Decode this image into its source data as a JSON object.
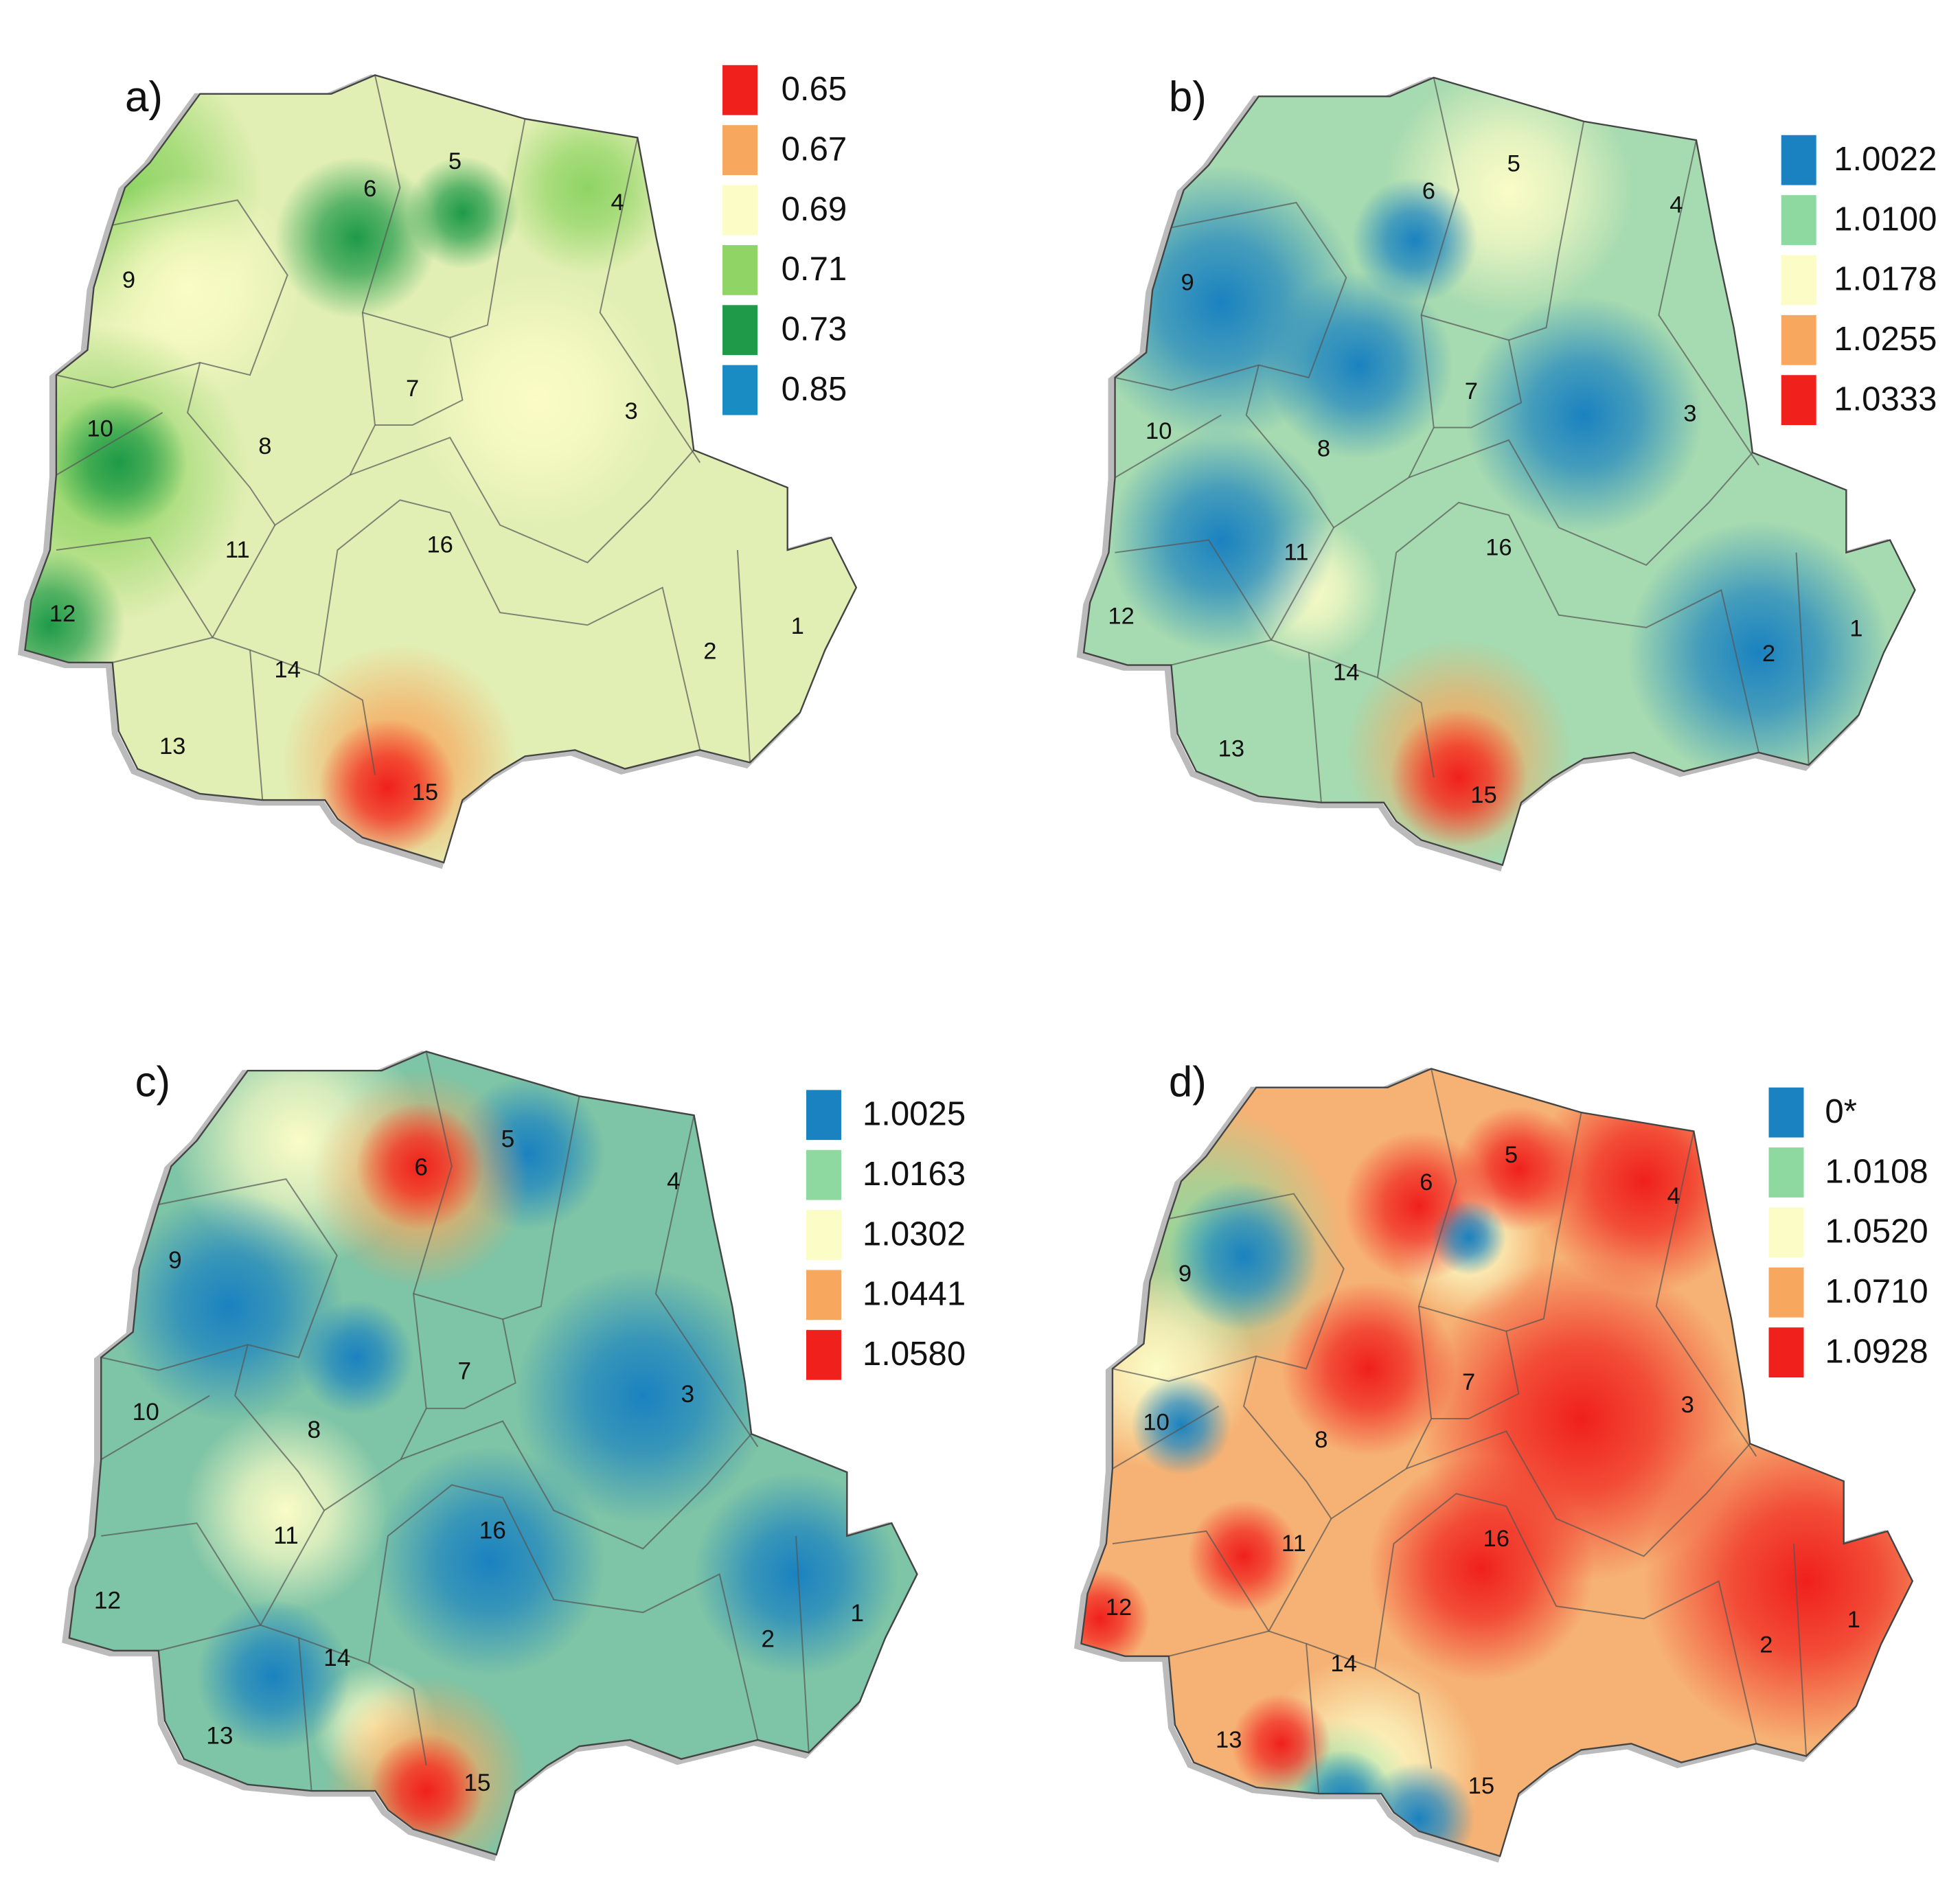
{
  "panels": [
    {
      "label": "a)",
      "legend": [
        {
          "label": "0.65",
          "color": "#f0201c"
        },
        {
          "label": "0.67",
          "color": "#f7a85e"
        },
        {
          "label": "0.69",
          "color": "#fbfcc6"
        },
        {
          "label": "0.71",
          "color": "#8fd464"
        },
        {
          "label": "0.73",
          "color": "#1e9a48"
        },
        {
          "label": "0.85",
          "color": "#1a8cc4"
        }
      ],
      "regions": [
        "1",
        "2",
        "3",
        "4",
        "5",
        "6",
        "7",
        "8",
        "9",
        "10",
        "11",
        "12",
        "13",
        "14",
        "15",
        "16"
      ]
    },
    {
      "label": "b)",
      "legend": [
        {
          "label": "1.0022",
          "color": "#1a82c0"
        },
        {
          "label": "1.0100",
          "color": "#8ed9a0"
        },
        {
          "label": "1.0178",
          "color": "#fbfcc6"
        },
        {
          "label": "1.0255",
          "color": "#f7a85e"
        },
        {
          "label": "1.0333",
          "color": "#f0201c"
        }
      ],
      "regions": [
        "1",
        "2",
        "3",
        "4",
        "5",
        "6",
        "7",
        "8",
        "9",
        "10",
        "11",
        "12",
        "13",
        "14",
        "15",
        "16"
      ]
    },
    {
      "label": "c)",
      "legend": [
        {
          "label": "1.0025",
          "color": "#1a82c0"
        },
        {
          "label": "1.0163",
          "color": "#8ed9a0"
        },
        {
          "label": "1.0302",
          "color": "#fbfcc6"
        },
        {
          "label": "1.0441",
          "color": "#f7a85e"
        },
        {
          "label": "1.0580",
          "color": "#f0201c"
        }
      ],
      "regions": [
        "1",
        "2",
        "3",
        "4",
        "5",
        "6",
        "7",
        "8",
        "9",
        "10",
        "11",
        "12",
        "13",
        "14",
        "15",
        "16"
      ]
    },
    {
      "label": "d)",
      "legend": [
        {
          "label": "0*",
          "color": "#1a82c0"
        },
        {
          "label": "1.0108",
          "color": "#8ed9a0"
        },
        {
          "label": "1.0520",
          "color": "#fbfcc6"
        },
        {
          "label": "1.0710",
          "color": "#f7a85e"
        },
        {
          "label": "1.0928",
          "color": "#f0201c"
        }
      ],
      "regions": [
        "1",
        "2",
        "3",
        "4",
        "5",
        "6",
        "7",
        "8",
        "9",
        "10",
        "11",
        "12",
        "13",
        "14",
        "15",
        "16"
      ]
    }
  ]
}
